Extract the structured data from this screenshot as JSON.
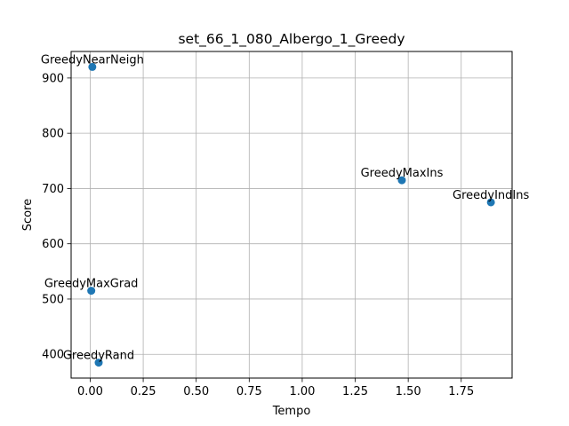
{
  "chart_data": {
    "type": "scatter",
    "title": "set_66_1_080_Albergo_1_Greedy",
    "xlabel": "Tempo",
    "ylabel": "Score",
    "xlim": [
      -0.09,
      1.99
    ],
    "ylim": [
      357,
      948
    ],
    "xticks": [
      0.0,
      0.25,
      0.5,
      0.75,
      1.0,
      1.25,
      1.5,
      1.75
    ],
    "xtick_labels": [
      "0.00",
      "0.25",
      "0.50",
      "0.75",
      "1.00",
      "1.25",
      "1.50",
      "1.75"
    ],
    "yticks": [
      400,
      500,
      600,
      700,
      800,
      900
    ],
    "ytick_labels": [
      "400",
      "500",
      "600",
      "700",
      "800",
      "900"
    ],
    "grid": true,
    "marker_color": "#1f77b4",
    "points": [
      {
        "label": "GreedyNearNeigh",
        "x": 0.01,
        "y": 920
      },
      {
        "label": "GreedyMaxIns",
        "x": 1.47,
        "y": 715
      },
      {
        "label": "GreedyIndIns",
        "x": 1.89,
        "y": 675
      },
      {
        "label": "GreedyMaxGrad",
        "x": 0.005,
        "y": 515
      },
      {
        "label": "GreedyRand",
        "x": 0.04,
        "y": 385
      }
    ]
  }
}
